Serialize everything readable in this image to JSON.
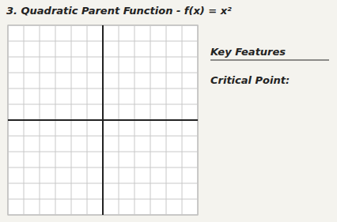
{
  "chart_data": {
    "type": "grid",
    "title": "3. Quadratic Parent Function - f(x) = x²",
    "annotations": [
      "Key Features",
      "Critical Point:"
    ],
    "xlim": [
      -6,
      6
    ],
    "ylim": [
      -6,
      6
    ],
    "xticks": [
      -6,
      -5,
      -4,
      -3,
      -2,
      -1,
      0,
      1,
      2,
      3,
      4,
      5,
      6
    ],
    "yticks": [
      -6,
      -5,
      -4,
      -3,
      -2,
      -1,
      0,
      1,
      2,
      3,
      4,
      5,
      6
    ],
    "grid": true,
    "tick_labels": false
  }
}
